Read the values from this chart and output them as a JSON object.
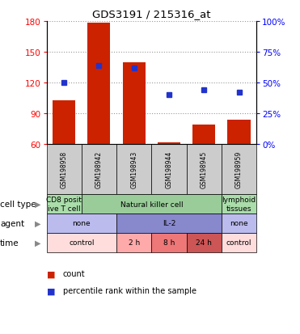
{
  "title": "GDS3191 / 215316_at",
  "samples": [
    "GSM198958",
    "GSM198942",
    "GSM198943",
    "GSM198944",
    "GSM198945",
    "GSM198959"
  ],
  "count_values": [
    103,
    178,
    140,
    62,
    79,
    84
  ],
  "percentile_values": [
    50,
    64,
    62,
    40,
    44,
    42
  ],
  "ylim_left": [
    60,
    180
  ],
  "ylim_right": [
    0,
    100
  ],
  "yticks_left": [
    60,
    90,
    120,
    150,
    180
  ],
  "yticks_right": [
    0,
    25,
    50,
    75,
    100
  ],
  "bar_color": "#cc2200",
  "dot_color": "#2233cc",
  "bar_bottom": 60,
  "cell_type_data": [
    {
      "label": "CD8 posit\nive T cell",
      "span": [
        0,
        1
      ],
      "color": "#aaddaa"
    },
    {
      "label": "Natural killer cell",
      "span": [
        1,
        5
      ],
      "color": "#99cc99"
    },
    {
      "label": "lymphoid\ntissues",
      "span": [
        5,
        6
      ],
      "color": "#aaddaa"
    }
  ],
  "agent_data": [
    {
      "label": "none",
      "span": [
        0,
        2
      ],
      "color": "#bbbbee"
    },
    {
      "label": "IL-2",
      "span": [
        2,
        5
      ],
      "color": "#8888cc"
    },
    {
      "label": "none",
      "span": [
        5,
        6
      ],
      "color": "#bbbbee"
    }
  ],
  "time_data": [
    {
      "label": "control",
      "span": [
        0,
        2
      ],
      "color": "#ffdddd"
    },
    {
      "label": "2 h",
      "span": [
        2,
        3
      ],
      "color": "#ffaaaa"
    },
    {
      "label": "8 h",
      "span": [
        3,
        4
      ],
      "color": "#ee7777"
    },
    {
      "label": "24 h",
      "span": [
        4,
        5
      ],
      "color": "#cc5555"
    },
    {
      "label": "control",
      "span": [
        5,
        6
      ],
      "color": "#ffdddd"
    }
  ],
  "legend_items": [
    {
      "color": "#cc2200",
      "label": "count"
    },
    {
      "color": "#2233cc",
      "label": "percentile rank within the sample"
    }
  ],
  "sample_col_color": "#cccccc",
  "grid_color": "#999999"
}
